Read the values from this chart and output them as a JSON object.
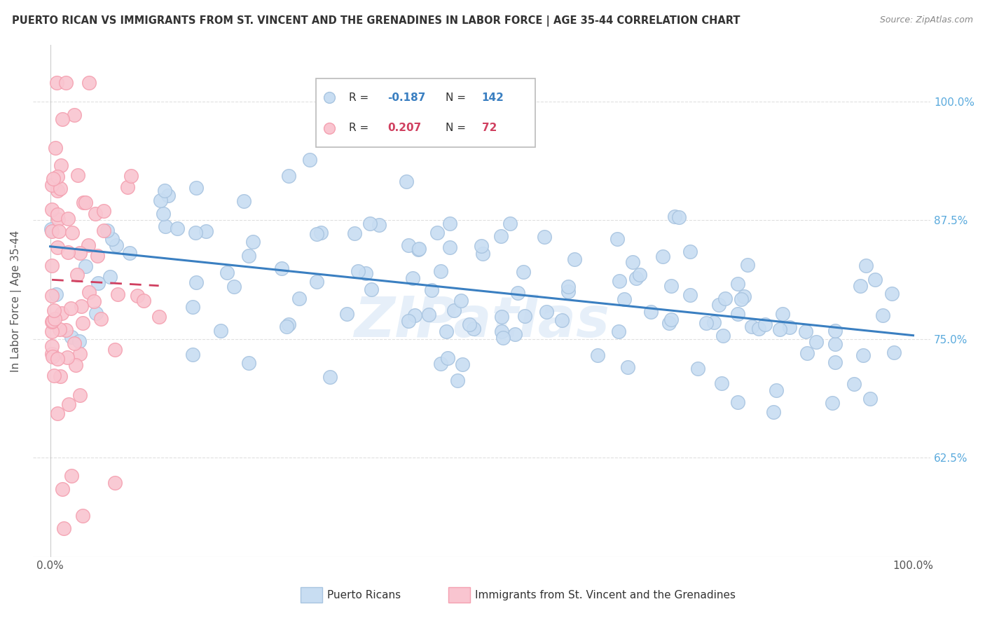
{
  "title": "PUERTO RICAN VS IMMIGRANTS FROM ST. VINCENT AND THE GRENADINES IN LABOR FORCE | AGE 35-44 CORRELATION CHART",
  "source": "Source: ZipAtlas.com",
  "ylabel": "In Labor Force | Age 35-44",
  "ytick_labels": [
    "100.0%",
    "87.5%",
    "75.0%",
    "62.5%"
  ],
  "ytick_values": [
    1.0,
    0.875,
    0.75,
    0.625
  ],
  "legend_r_blue": "-0.187",
  "legend_n_blue": "142",
  "legend_r_pink": "0.207",
  "legend_n_pink": "72",
  "blue_face_color": "#c8ddf2",
  "blue_edge_color": "#a8c4e0",
  "pink_face_color": "#f9c5d0",
  "pink_edge_color": "#f4a0b0",
  "blue_line_color": "#3a7fc1",
  "pink_line_color": "#d04060",
  "pink_line_dash": [
    6,
    4
  ],
  "watermark": "ZIPatlas",
  "background_color": "#ffffff",
  "grid_color": "#e0e0e0",
  "ytick_color": "#5aaadd",
  "xtick_color": "#555555",
  "ylabel_color": "#555555",
  "title_color": "#333333",
  "source_color": "#888888",
  "legend_r_blue_color": "#3a7fc1",
  "legend_n_blue_color": "#3a7fc1",
  "legend_r_pink_color": "#d04060",
  "legend_n_pink_color": "#d04060",
  "blue_n": 142,
  "pink_n": 72,
  "ylim_low": 0.52,
  "ylim_high": 1.06,
  "xlim_low": -0.02,
  "xlim_high": 1.02
}
